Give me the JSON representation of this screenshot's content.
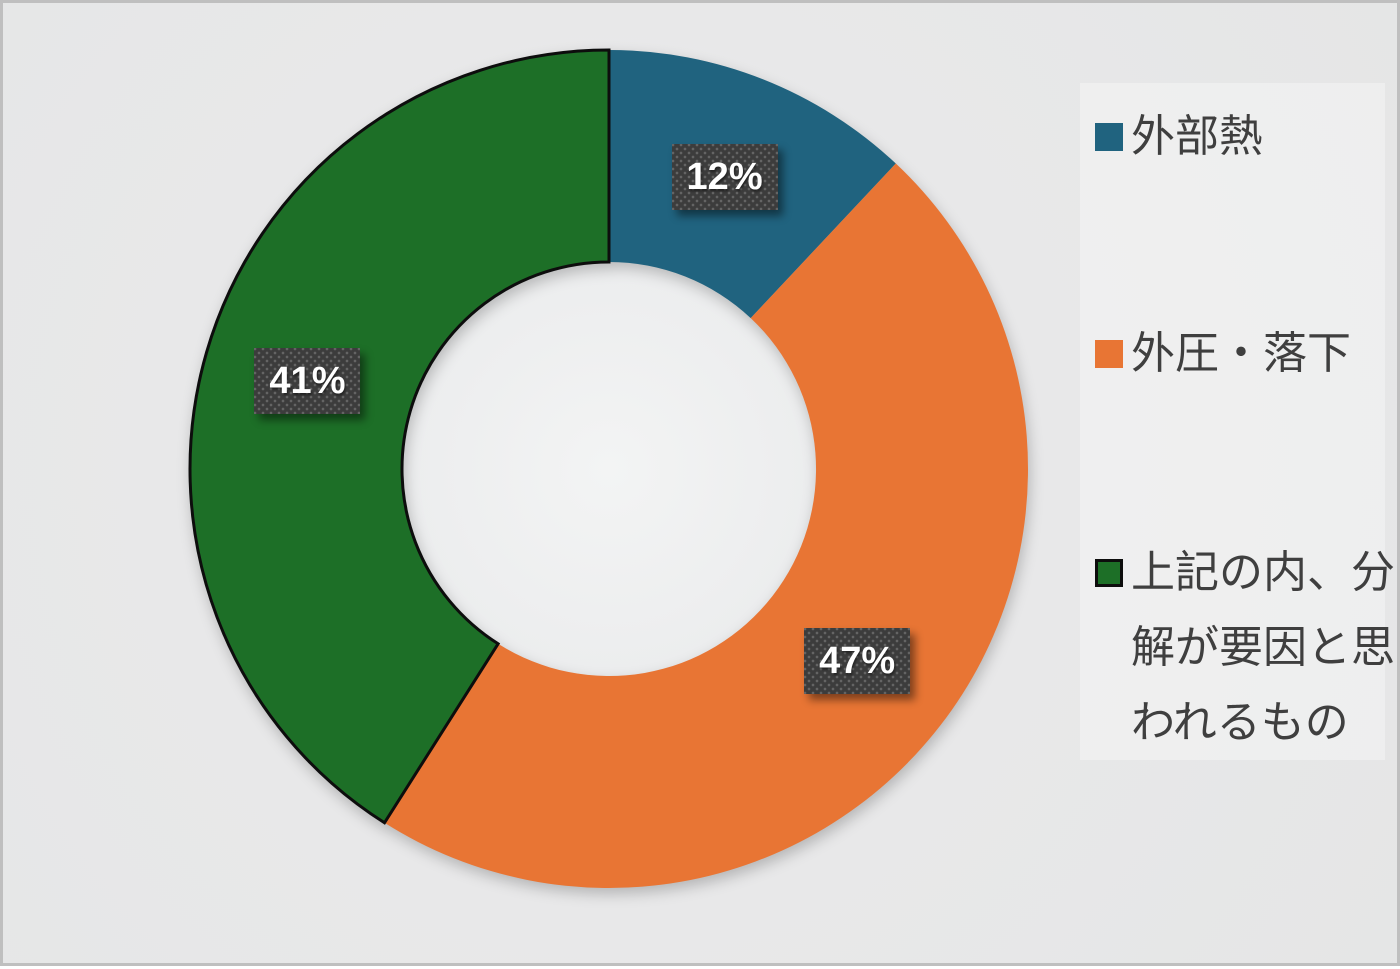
{
  "chart_data": {
    "type": "pie",
    "subtype": "donut",
    "title": "",
    "start_angle_deg": 0,
    "direction": "clockwise",
    "hole_ratio": 0.49,
    "legend_position": "right",
    "slices": [
      {
        "label": "外部熱",
        "value_pct": 12,
        "data_label": "12%",
        "color": "#20637F"
      },
      {
        "label": "外圧・落下",
        "value_pct": 47,
        "data_label": "47%",
        "color": "#E87534"
      },
      {
        "label": "上記の内、分解が要因と思われるもの",
        "value_pct": 41,
        "data_label": "41%",
        "color": "#1D6F27",
        "stroke": "#0d0d0d",
        "stroke_width": 3
      }
    ]
  },
  "styles": {
    "background": "#e8e8e9",
    "frame_border": "#bfbfbf",
    "legend_panel": "rgba(255,255,255,0.33)",
    "legend_text": "#3f3f3f",
    "data_label_bg": "#3c3c3c",
    "data_label_dot": "#646464",
    "data_label_text": "#ffffff"
  }
}
